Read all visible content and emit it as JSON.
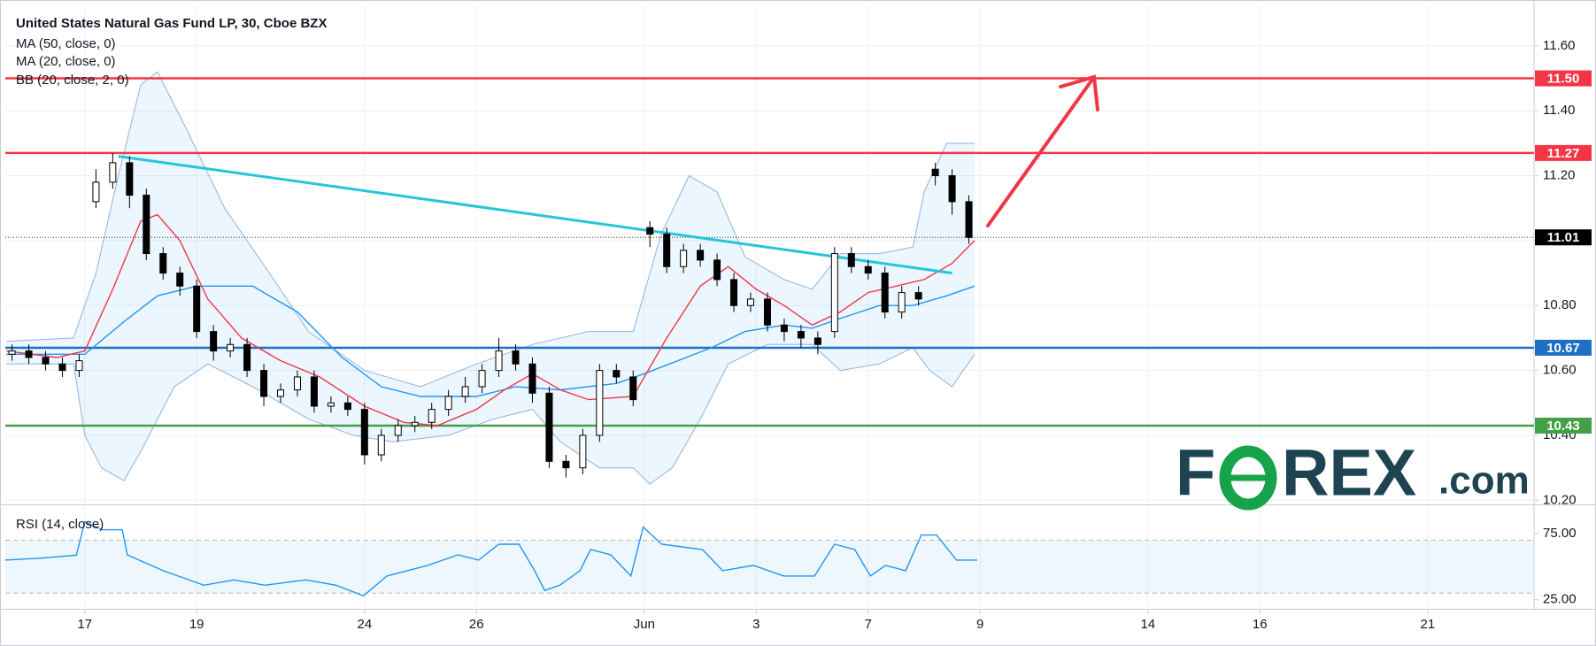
{
  "chart_data": [
    {
      "type": "candlestick",
      "title": "United States Natural Gas Fund LP, 30, Cboe BZX",
      "xlim": [
        -1.42,
        25.9
      ],
      "xticks": [
        {
          "value": 0,
          "label": "17"
        },
        {
          "value": 2,
          "label": "19"
        },
        {
          "value": 5,
          "label": "24"
        },
        {
          "value": 7,
          "label": "26"
        },
        {
          "value": 10,
          "label": "Jun"
        },
        {
          "value": 12,
          "label": "3"
        },
        {
          "value": 14,
          "label": "7"
        },
        {
          "value": 16,
          "label": "9"
        },
        {
          "value": 19,
          "label": "14"
        },
        {
          "value": 21,
          "label": "16"
        },
        {
          "value": 24,
          "label": "21"
        }
      ],
      "ylim": [
        10.19,
        11.725
      ],
      "yticks": [
        {
          "value": 10.2,
          "label": "10.20"
        },
        {
          "value": 10.4,
          "label": "10.40"
        },
        {
          "value": 10.6,
          "label": "10.60"
        },
        {
          "value": 10.8,
          "label": "10.80"
        },
        {
          "value": 11.0,
          "label": "11.00"
        },
        {
          "value": 11.2,
          "label": "11.20"
        },
        {
          "value": 11.4,
          "label": "11.40"
        },
        {
          "value": 11.6,
          "label": "11.60"
        }
      ],
      "grid": true,
      "candles": {
        "x": [
          -1.3,
          -1.0,
          -0.7,
          -0.4,
          -0.1,
          0.2,
          0.5,
          0.8,
          1.1,
          1.4,
          1.7,
          2.0,
          2.3,
          2.6,
          2.9,
          3.2,
          3.5,
          3.8,
          4.1,
          4.4,
          4.7,
          5.0,
          5.3,
          5.6,
          5.9,
          6.2,
          6.5,
          6.8,
          7.1,
          7.4,
          7.7,
          8.0,
          8.3,
          8.6,
          8.9,
          9.2,
          9.5,
          9.8,
          10.1,
          10.4,
          10.7,
          11.0,
          11.3,
          11.6,
          11.9,
          12.2,
          12.5,
          12.8,
          13.1,
          13.4,
          13.7,
          14.0,
          14.3,
          14.6,
          14.9,
          15.2,
          15.5,
          15.8
        ],
        "open": [
          10.65,
          10.66,
          10.64,
          10.62,
          10.6,
          11.12,
          11.18,
          11.24,
          11.14,
          10.96,
          10.9,
          10.86,
          10.72,
          10.66,
          10.68,
          10.6,
          10.52,
          10.54,
          10.58,
          10.49,
          10.5,
          10.48,
          10.34,
          10.4,
          10.43,
          10.44,
          10.48,
          10.52,
          10.55,
          10.6,
          10.66,
          10.62,
          10.53,
          10.32,
          10.3,
          10.4,
          10.6,
          10.58,
          11.04,
          11.02,
          10.92,
          10.97,
          10.94,
          10.88,
          10.8,
          10.82,
          10.74,
          10.72,
          10.7,
          10.72,
          10.96,
          10.92,
          10.9,
          10.78,
          10.84,
          11.22,
          11.2,
          11.12
        ],
        "high": [
          10.68,
          10.68,
          10.66,
          10.64,
          10.65,
          11.22,
          11.27,
          11.26,
          11.16,
          10.98,
          10.92,
          10.88,
          10.74,
          10.7,
          10.7,
          10.62,
          10.56,
          10.6,
          10.6,
          10.52,
          10.52,
          10.5,
          10.42,
          10.45,
          10.46,
          10.5,
          10.54,
          10.58,
          10.62,
          10.7,
          10.68,
          10.64,
          10.55,
          10.34,
          10.42,
          10.62,
          10.62,
          10.6,
          11.06,
          11.04,
          10.99,
          10.99,
          10.96,
          10.9,
          10.84,
          10.84,
          10.76,
          10.74,
          10.72,
          10.98,
          10.98,
          10.94,
          10.92,
          10.86,
          10.86,
          11.24,
          11.22,
          11.14
        ],
        "low": [
          10.63,
          10.62,
          10.6,
          10.58,
          10.58,
          11.1,
          11.16,
          11.1,
          10.94,
          10.88,
          10.83,
          10.7,
          10.63,
          10.64,
          10.58,
          10.49,
          10.5,
          10.52,
          10.47,
          10.47,
          10.46,
          10.31,
          10.32,
          10.38,
          10.41,
          10.42,
          10.46,
          10.5,
          10.53,
          10.58,
          10.6,
          10.5,
          10.3,
          10.27,
          10.28,
          10.38,
          10.56,
          10.49,
          10.98,
          10.9,
          10.9,
          10.92,
          10.86,
          10.78,
          10.78,
          10.72,
          10.69,
          10.67,
          10.65,
          10.7,
          10.9,
          10.88,
          10.76,
          10.76,
          10.8,
          11.17,
          11.08,
          10.99
        ],
        "close": [
          10.66,
          10.64,
          10.62,
          10.6,
          10.63,
          11.18,
          11.24,
          11.14,
          10.96,
          10.9,
          10.86,
          10.72,
          10.66,
          10.68,
          10.6,
          10.52,
          10.54,
          10.58,
          10.49,
          10.5,
          10.48,
          10.34,
          10.4,
          10.43,
          10.44,
          10.48,
          10.52,
          10.55,
          10.6,
          10.66,
          10.62,
          10.53,
          10.32,
          10.3,
          10.4,
          10.6,
          10.58,
          10.51,
          11.02,
          10.92,
          10.97,
          10.94,
          10.88,
          10.8,
          10.82,
          10.74,
          10.72,
          10.7,
          10.68,
          10.96,
          10.92,
          10.9,
          10.78,
          10.84,
          10.82,
          11.2,
          11.12,
          11.01
        ]
      },
      "series": [
        {
          "name": "MA (50, close, 0)",
          "color": "#2196f3",
          "x": [
            -1.4,
            0,
            0.7,
            1.3,
            2.0,
            3.0,
            3.8,
            4.6,
            5.3,
            6.0,
            7.0,
            7.7,
            8.5,
            9.5,
            10.0,
            10.6,
            11.2,
            11.8,
            12.5,
            13.0,
            13.5,
            14.2,
            14.8,
            15.4,
            15.9
          ],
          "values": [
            10.65,
            10.65,
            10.75,
            10.83,
            10.86,
            10.86,
            10.78,
            10.64,
            10.55,
            10.52,
            10.52,
            10.55,
            10.54,
            10.56,
            10.59,
            10.63,
            10.67,
            10.72,
            10.74,
            10.73,
            10.76,
            10.8,
            10.8,
            10.83,
            10.86
          ]
        },
        {
          "name": "MA (20, close, 0)",
          "color": "#f23645",
          "x": [
            -1.4,
            -0.5,
            0,
            0.5,
            1.0,
            1.3,
            1.7,
            2.2,
            2.8,
            3.5,
            4.2,
            5.0,
            5.7,
            6.3,
            7.0,
            7.5,
            8.0,
            8.5,
            9.0,
            9.8,
            10.4,
            11.0,
            11.5,
            12.0,
            12.5,
            13.0,
            13.5,
            14.0,
            14.5,
            15.0,
            15.5,
            15.9
          ],
          "values": [
            10.66,
            10.64,
            10.66,
            10.85,
            11.06,
            11.08,
            11.0,
            10.82,
            10.7,
            10.63,
            10.58,
            10.49,
            10.44,
            10.43,
            10.48,
            10.54,
            10.59,
            10.54,
            10.51,
            10.52,
            10.7,
            10.86,
            10.92,
            10.85,
            10.8,
            10.74,
            10.78,
            10.84,
            10.86,
            10.88,
            10.93,
            11.0
          ]
        },
        {
          "name": "BB (20, close, 2, 0)",
          "color": "#90b4e0",
          "x_upper": [
            -1.4,
            -0.2,
            0.2,
            0.6,
            1.0,
            1.3,
            1.8,
            2.5,
            3.3,
            4.0,
            5.0,
            6.0,
            7.0,
            8.0,
            9.0,
            9.8,
            10.3,
            10.8,
            11.3,
            11.8,
            12.5,
            13.0,
            13.5,
            14.2,
            14.8,
            15.0,
            15.4,
            15.9
          ],
          "upper": [
            10.69,
            10.7,
            10.9,
            11.2,
            11.48,
            11.52,
            11.35,
            11.1,
            10.9,
            10.72,
            10.6,
            10.55,
            10.62,
            10.68,
            10.72,
            10.72,
            11.02,
            11.2,
            11.15,
            10.95,
            10.88,
            10.85,
            10.96,
            10.96,
            10.98,
            11.15,
            11.3,
            11.3
          ],
          "x_lower": [
            -1.4,
            -0.2,
            0,
            0.3,
            0.7,
            1.0,
            1.6,
            2.2,
            3.0,
            4.0,
            4.8,
            5.5,
            6.5,
            7.3,
            8.0,
            8.5,
            9.2,
            9.8,
            10.1,
            10.5,
            11.0,
            11.5,
            12.2,
            13.0,
            13.5,
            14.2,
            14.8,
            15.1,
            15.5,
            15.9
          ],
          "lower": [
            10.62,
            10.62,
            10.4,
            10.3,
            10.26,
            10.35,
            10.55,
            10.62,
            10.55,
            10.45,
            10.4,
            10.38,
            10.4,
            10.45,
            10.48,
            10.38,
            10.3,
            10.3,
            10.25,
            10.3,
            10.45,
            10.62,
            10.68,
            10.68,
            10.6,
            10.62,
            10.67,
            10.6,
            10.55,
            10.65
          ]
        }
      ],
      "trendline": {
        "x": [
          0.6,
          15.5
        ],
        "values": [
          11.26,
          10.9
        ],
        "color": "#26c6da"
      },
      "levels": [
        {
          "value": 11.5,
          "label": "11.50",
          "color": "#f23645"
        },
        {
          "value": 11.27,
          "label": "11.27",
          "color": "#f23645"
        },
        {
          "value": 10.67,
          "label": "10.67",
          "color": "#1e6fc4"
        },
        {
          "value": 10.43,
          "label": "10.43",
          "color": "#43a047"
        }
      ],
      "last": {
        "value": 11.01,
        "label": "11.01",
        "color": "#000000"
      },
      "watermark": [
        "F",
        "REX",
        ".com"
      ]
    },
    {
      "type": "line",
      "title": "RSI (14, close)",
      "xlim": [
        -1.42,
        25.9
      ],
      "ylim": [
        18.8,
        95.8
      ],
      "yticks": [
        {
          "value": 25,
          "label": "25.00"
        },
        {
          "value": 75,
          "label": "75.00"
        }
      ],
      "band": [
        30,
        70
      ],
      "series": [
        {
          "name": "RSI",
          "color": "#2196f3",
          "x": [
            -1.42,
            -0.78,
            -0.15,
            0,
            0.31,
            0.67,
            0.76,
            1.4,
            2.13,
            2.67,
            3.22,
            3.95,
            4.49,
            4.98,
            5.4,
            6.13,
            6.67,
            7.04,
            7.4,
            7.76,
            8.04,
            8.22,
            8.49,
            8.85,
            9.04,
            9.4,
            9.76,
            9.98,
            10.31,
            11.04,
            11.4,
            11.95,
            12.49,
            13.04,
            13.4,
            13.76,
            14.04,
            14.31,
            14.67,
            14.95,
            15.22,
            15.58,
            15.95
          ],
          "values": [
            55,
            56.5,
            58.8,
            84,
            78,
            78,
            59,
            47,
            36,
            40,
            36,
            40,
            36,
            28,
            43,
            51,
            59,
            55,
            67,
            67,
            47,
            32,
            36,
            47,
            63,
            59,
            43,
            80,
            67,
            63,
            47,
            51,
            43,
            43,
            67,
            63,
            43,
            51,
            47,
            74,
            74,
            55,
            55
          ]
        }
      ]
    }
  ]
}
